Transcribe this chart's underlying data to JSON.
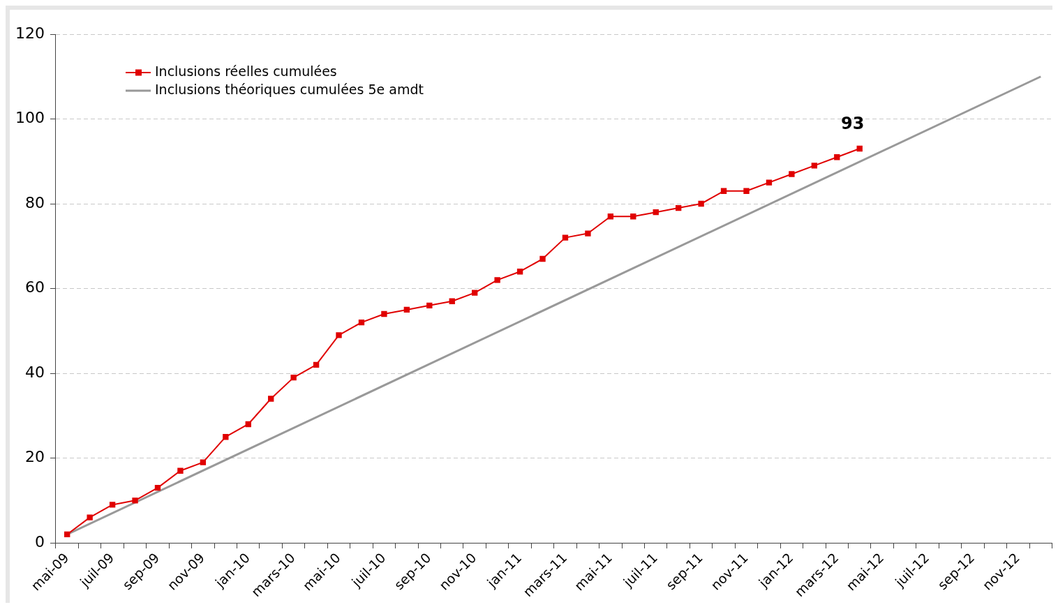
{
  "chart_data": {
    "type": "line",
    "categories": [
      "mai-09",
      null,
      "juil-09",
      null,
      "sep-09",
      null,
      "nov-09",
      null,
      "jan-10",
      null,
      "mars-10",
      null,
      "mai-10",
      null,
      "juil-10",
      null,
      "sep-10",
      null,
      "nov-10",
      null,
      "jan-11",
      null,
      "mars-11",
      null,
      "mai-11",
      null,
      "juil-11",
      null,
      "sep-11",
      null,
      "nov-11",
      null,
      "jan-12",
      null,
      "mars-12",
      null,
      "mai-12",
      null,
      "juil-12",
      null,
      "sep-12",
      null,
      "nov-12",
      null
    ],
    "series": [
      {
        "name": "Inclusions réelles cumulées",
        "color": "#e00000",
        "marker": "square",
        "values": [
          2,
          6,
          9,
          10,
          13,
          17,
          19,
          25,
          28,
          34,
          39,
          42,
          49,
          52,
          54,
          55,
          56,
          57,
          59,
          62,
          64,
          67,
          72,
          73,
          77,
          77,
          78,
          79,
          80,
          83,
          83,
          85,
          87,
          89,
          91,
          93,
          null,
          null,
          null,
          null,
          null,
          null,
          null,
          null
        ],
        "value_labels": [
          null,
          null,
          null,
          null,
          null,
          null,
          null,
          null,
          null,
          null,
          null,
          null,
          null,
          null,
          null,
          null,
          null,
          null,
          null,
          null,
          null,
          null,
          null,
          null,
          null,
          null,
          null,
          null,
          null,
          null,
          null,
          null,
          null,
          null,
          null,
          "93",
          null,
          null,
          null,
          null,
          null,
          null,
          null,
          null
        ]
      },
      {
        "name": "Inclusions théoriques cumulées 5e amdt",
        "color": "#999999",
        "marker": "none",
        "values": [
          2,
          null,
          null,
          null,
          null,
          null,
          null,
          null,
          null,
          null,
          null,
          null,
          null,
          null,
          null,
          null,
          null,
          null,
          null,
          null,
          null,
          null,
          null,
          null,
          null,
          null,
          null,
          null,
          null,
          null,
          null,
          null,
          null,
          null,
          null,
          null,
          null,
          null,
          null,
          null,
          null,
          null,
          null,
          110
        ]
      }
    ],
    "ylim": [
      0,
      120
    ],
    "yticks": [
      0,
      20,
      40,
      60,
      80,
      100,
      120
    ],
    "grid": "y",
    "legend": "top left"
  }
}
